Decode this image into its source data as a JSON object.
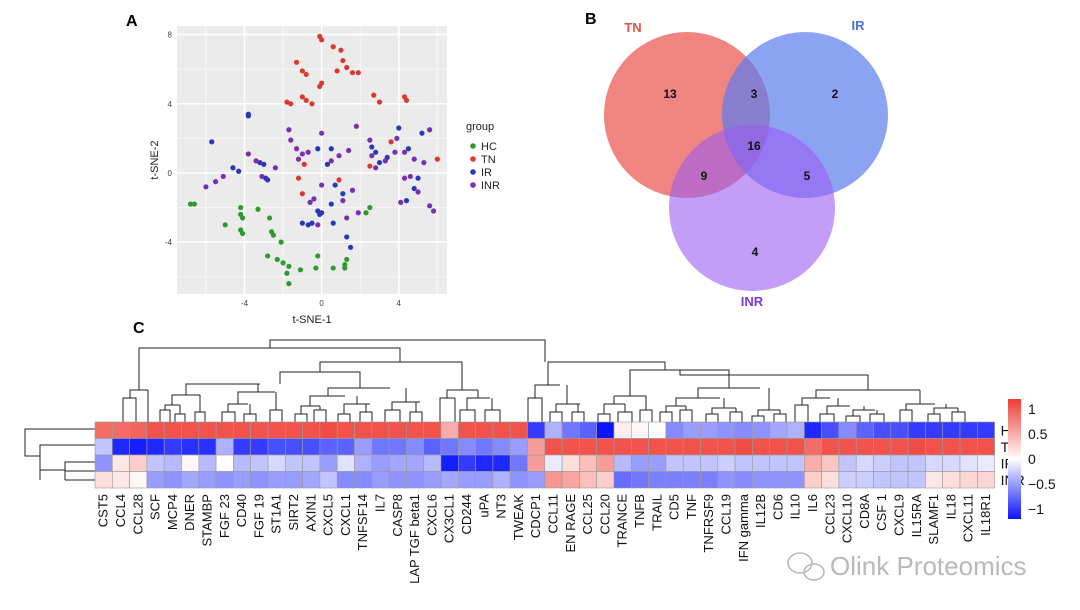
{
  "panel_labels": {
    "a": "A",
    "b": "B",
    "c": "C"
  },
  "chart_data": [
    {
      "type": "scatter",
      "panel": "A",
      "xlabel": "t-SNE-1",
      "ylabel": "t-SNE-2",
      "xlim": [
        -7.5,
        6.5
      ],
      "ylim": [
        -7,
        8.5
      ],
      "xticks": [
        -4,
        0,
        4
      ],
      "yticks": [
        -4,
        0,
        4,
        8
      ],
      "grid": true,
      "legend_title": "group",
      "legend_position": "right",
      "series": [
        {
          "name": "HC",
          "color": "#2e9a2e",
          "points": [
            [
              -6.8,
              -1.8
            ],
            [
              -6.6,
              -1.8
            ],
            [
              -5.0,
              -3.0
            ],
            [
              -4.2,
              -2.0
            ],
            [
              -4.2,
              -2.4
            ],
            [
              -4.1,
              -2.6
            ],
            [
              -4.2,
              -3.3
            ],
            [
              -4.1,
              -3.5
            ],
            [
              -3.3,
              -2.1
            ],
            [
              -2.7,
              -2.6
            ],
            [
              -2.6,
              -3.4
            ],
            [
              -2.5,
              -3.6
            ],
            [
              -2.1,
              -4.0
            ],
            [
              -2.8,
              -4.8
            ],
            [
              -2.3,
              -5.0
            ],
            [
              -2.0,
              -5.2
            ],
            [
              -1.8,
              -5.8
            ],
            [
              -1.7,
              -6.4
            ],
            [
              -1.1,
              -5.6
            ],
            [
              -0.3,
              -5.5
            ],
            [
              0.6,
              -5.5
            ],
            [
              1.2,
              -5.5
            ],
            [
              -0.2,
              -4.8
            ],
            [
              1.3,
              -5.0
            ],
            [
              2.3,
              -2.3
            ],
            [
              2.5,
              -2.0
            ],
            [
              1.2,
              -5.3
            ],
            [
              -1.7,
              -5.4
            ]
          ]
        },
        {
          "name": "TN",
          "color": "#d83a2f",
          "points": [
            [
              -0.1,
              7.9
            ],
            [
              0.0,
              7.7
            ],
            [
              0.6,
              7.3
            ],
            [
              1.0,
              7.1
            ],
            [
              1.1,
              6.5
            ],
            [
              1.3,
              6.1
            ],
            [
              1.6,
              5.8
            ],
            [
              1.9,
              5.8
            ],
            [
              -1.3,
              6.4
            ],
            [
              -1.0,
              5.9
            ],
            [
              -0.8,
              5.7
            ],
            [
              0.8,
              5.9
            ],
            [
              0.0,
              5.2
            ],
            [
              -0.1,
              5.0
            ],
            [
              -1.0,
              4.4
            ],
            [
              -0.8,
              4.2
            ],
            [
              -0.5,
              4.0
            ],
            [
              -1.8,
              4.1
            ],
            [
              -1.6,
              4.0
            ],
            [
              2.7,
              4.5
            ],
            [
              3.0,
              4.1
            ],
            [
              4.3,
              4.4
            ],
            [
              4.4,
              4.2
            ],
            [
              3.6,
              1.8
            ],
            [
              -0.9,
              0.5
            ],
            [
              -1.0,
              -1.2
            ],
            [
              -1.2,
              -0.3
            ],
            [
              0.9,
              -0.4
            ],
            [
              2.5,
              0.4
            ],
            [
              6.0,
              0.8
            ]
          ]
        },
        {
          "name": "IR",
          "color": "#2838b8",
          "points": [
            [
              -5.7,
              1.8
            ],
            [
              -3.8,
              3.4
            ],
            [
              -3.8,
              3.3
            ],
            [
              -4.6,
              0.3
            ],
            [
              -4.3,
              0.1
            ],
            [
              -3.2,
              0.6
            ],
            [
              -3.0,
              0.5
            ],
            [
              -2.9,
              -0.3
            ],
            [
              -2.8,
              -0.4
            ],
            [
              -0.2,
              1.4
            ],
            [
              0.3,
              0.5
            ],
            [
              0.5,
              1.4
            ],
            [
              2.6,
              1.5
            ],
            [
              2.8,
              1.2
            ],
            [
              3.0,
              0.6
            ],
            [
              3.4,
              0.9
            ],
            [
              4.0,
              2.6
            ],
            [
              4.5,
              1.4
            ],
            [
              5.0,
              -0.3
            ],
            [
              4.8,
              -0.9
            ],
            [
              4.4,
              -1.6
            ],
            [
              5.2,
              2.3
            ],
            [
              0.7,
              -0.7
            ],
            [
              1.1,
              -1.2
            ],
            [
              0.5,
              -1.8
            ],
            [
              0.0,
              -2.3
            ],
            [
              -0.5,
              -2.9
            ],
            [
              -1.0,
              -2.9
            ],
            [
              -0.1,
              -2.4
            ],
            [
              1.3,
              -3.7
            ],
            [
              1.5,
              -4.3
            ],
            [
              -0.2,
              -2.2
            ],
            [
              -0.7,
              -3.0
            ],
            [
              0.6,
              -2.9
            ]
          ]
        },
        {
          "name": "INR",
          "color": "#7a2fb0",
          "points": [
            [
              -5.5,
              -0.5
            ],
            [
              -5.1,
              -0.2
            ],
            [
              -6.0,
              -0.8
            ],
            [
              -3.8,
              1.1
            ],
            [
              -3.1,
              -0.2
            ],
            [
              -1.2,
              0.8
            ],
            [
              -1.0,
              1.1
            ],
            [
              -1.7,
              2.5
            ],
            [
              -1.6,
              1.9
            ],
            [
              -1.3,
              1.4
            ],
            [
              -0.7,
              1.2
            ],
            [
              0.0,
              2.3
            ],
            [
              0.5,
              0.7
            ],
            [
              0.9,
              1.0
            ],
            [
              1.4,
              1.3
            ],
            [
              1.8,
              2.7
            ],
            [
              2.5,
              1.9
            ],
            [
              2.6,
              1.0
            ],
            [
              3.3,
              0.7
            ],
            [
              3.9,
              2.0
            ],
            [
              3.8,
              1.2
            ],
            [
              4.3,
              1.2
            ],
            [
              4.8,
              0.8
            ],
            [
              5.3,
              0.6
            ],
            [
              5.6,
              2.5
            ],
            [
              5.0,
              -1.1
            ],
            [
              5.6,
              -1.9
            ],
            [
              5.8,
              -2.2
            ],
            [
              4.3,
              -0.3
            ],
            [
              4.6,
              -0.2
            ],
            [
              1.1,
              -1.6
            ],
            [
              1.3,
              -2.6
            ],
            [
              1.9,
              -2.3
            ],
            [
              -0.6,
              -1.7
            ],
            [
              -0.4,
              -1.5
            ],
            [
              0.0,
              -0.7
            ],
            [
              -0.2,
              -3.0
            ],
            [
              -2.4,
              0.3
            ],
            [
              -3.4,
              0.7
            ],
            [
              2.8,
              0.3
            ],
            [
              4.1,
              -1.7
            ],
            [
              1.6,
              -1.0
            ]
          ]
        }
      ]
    },
    {
      "type": "venn",
      "panel": "B",
      "sets": [
        {
          "name": "TN",
          "color": "#e8504a",
          "label_color": "#e05346"
        },
        {
          "name": "IR",
          "color": "#5b7cf0",
          "label_color": "#4a6fe0"
        },
        {
          "name": "INR",
          "color": "#9b5cf2",
          "label_color": "#7a3bd6"
        }
      ],
      "regions": [
        {
          "sets": [
            "TN"
          ],
          "count": 13
        },
        {
          "sets": [
            "IR"
          ],
          "count": 2
        },
        {
          "sets": [
            "INR"
          ],
          "count": 4
        },
        {
          "sets": [
            "TN",
            "IR"
          ],
          "count": 3
        },
        {
          "sets": [
            "TN",
            "INR"
          ],
          "count": 9
        },
        {
          "sets": [
            "IR",
            "INR"
          ],
          "count": 5
        },
        {
          "sets": [
            "TN",
            "IR",
            "INR"
          ],
          "count": 16
        }
      ]
    },
    {
      "type": "heatmap",
      "panel": "C",
      "rows": [
        "HC",
        "TN",
        "IR",
        "INR"
      ],
      "columns": [
        "CST5",
        "CCL4",
        "CCL28",
        "SCF",
        "MCP4",
        "DNER",
        "STAMBP",
        "FGF 23",
        "CD40",
        "FGF 19",
        "ST1A1",
        "SIRT2",
        "AXIN1",
        "CXCL5",
        "CXCL1",
        "TNFSF14",
        "IL7",
        "CASP8",
        "LAP TGF beta1",
        "CXCL6",
        "CX3CL1",
        "CD244",
        "uPA",
        "NT3",
        "TWEAK",
        "CDCP1",
        "CCL11",
        "EN RAGE",
        "CCL25",
        "CCL20",
        "TRANCE",
        "TNFB",
        "TRAIL",
        "CD5",
        "TNF",
        "TNFRSF9",
        "CCL19",
        "IFN gamma",
        "IL12B",
        "CD6",
        "IL10",
        "IL6",
        "CCL23",
        "CXCL10",
        "CD8A",
        "CSF 1",
        "CXCL9",
        "IL15RA",
        "SLAMF1",
        "IL18",
        "CXCL11",
        "IL18R1"
      ],
      "values": [
        [
          0.9,
          0.9,
          0.95,
          1.05,
          1.05,
          1.05,
          1.05,
          1.05,
          1.05,
          1.05,
          1.05,
          1.05,
          1.05,
          1.1,
          1.05,
          1.05,
          1.05,
          1.05,
          1.05,
          1.05,
          0.5,
          1.05,
          1.05,
          1.05,
          1.05,
          -1.0,
          -0.4,
          -0.7,
          -0.8,
          -1.2,
          0.1,
          0.05,
          0.0,
          -0.6,
          -0.5,
          -0.5,
          -0.55,
          -0.6,
          -0.55,
          -0.45,
          -0.4,
          -1.1,
          -0.9,
          -0.6,
          -0.8,
          -0.9,
          -0.9,
          -1.0,
          -1.0,
          -1.0,
          -1.0,
          -1.0
        ],
        [
          -0.3,
          -1.1,
          -1.15,
          -1.1,
          -1.0,
          -1.05,
          -1.05,
          -0.4,
          -1.0,
          -1.0,
          -0.9,
          -0.9,
          -0.9,
          -0.8,
          -0.8,
          -0.5,
          -0.7,
          -0.7,
          -0.6,
          -0.8,
          -0.7,
          -0.6,
          -0.7,
          -0.6,
          -0.5,
          0.6,
          1.05,
          1.05,
          1.05,
          1.05,
          1.05,
          1.05,
          1.05,
          1.05,
          1.05,
          1.05,
          1.05,
          1.1,
          1.05,
          1.05,
          1.05,
          0.9,
          1.05,
          1.05,
          1.05,
          1.05,
          1.05,
          1.1,
          1.05,
          1.05,
          1.05,
          1.05
        ],
        [
          -0.55,
          0.15,
          0.3,
          -0.3,
          -0.35,
          0.05,
          -0.35,
          0.0,
          -0.35,
          -0.3,
          -0.2,
          -0.3,
          -0.3,
          -0.5,
          -0.15,
          -0.4,
          -0.5,
          -0.45,
          -0.45,
          -0.35,
          -1.15,
          -1.0,
          -1.1,
          -1.1,
          -0.7,
          0.6,
          -0.1,
          0.2,
          0.4,
          0.6,
          -0.35,
          -0.5,
          -0.5,
          -0.3,
          -0.3,
          -0.3,
          -0.25,
          -0.3,
          -0.3,
          -0.3,
          -0.3,
          0.5,
          0.35,
          -0.3,
          -0.2,
          -0.25,
          -0.3,
          -0.3,
          -0.2,
          -0.2,
          -0.15,
          -0.1
        ],
        [
          0.2,
          0.15,
          0.05,
          -0.5,
          -0.55,
          -0.45,
          -0.5,
          -0.55,
          -0.5,
          -0.55,
          -0.5,
          -0.5,
          -0.45,
          -0.3,
          -0.6,
          -0.6,
          -0.5,
          -0.55,
          -0.55,
          -0.5,
          -0.45,
          -0.5,
          -0.5,
          -0.4,
          -0.55,
          -0.5,
          0.65,
          0.55,
          0.4,
          0.3,
          -0.75,
          -0.7,
          -0.65,
          -0.65,
          -0.65,
          -0.65,
          -0.55,
          -0.6,
          -0.55,
          -0.55,
          -0.55,
          0.3,
          0.2,
          -0.25,
          -0.25,
          -0.3,
          -0.3,
          -0.3,
          0.15,
          0.2,
          0.25,
          0.25
        ]
      ],
      "color_range": [
        -1.2,
        1.2
      ],
      "colorbar_ticks": [
        "1",
        "0.5",
        "0",
        "−0.5",
        "−1"
      ],
      "colors": {
        "low": "#0b14ff",
        "mid": "#ffffff",
        "high": "#ef3b33"
      }
    }
  ],
  "watermark": {
    "text": "Olink Proteomics"
  }
}
